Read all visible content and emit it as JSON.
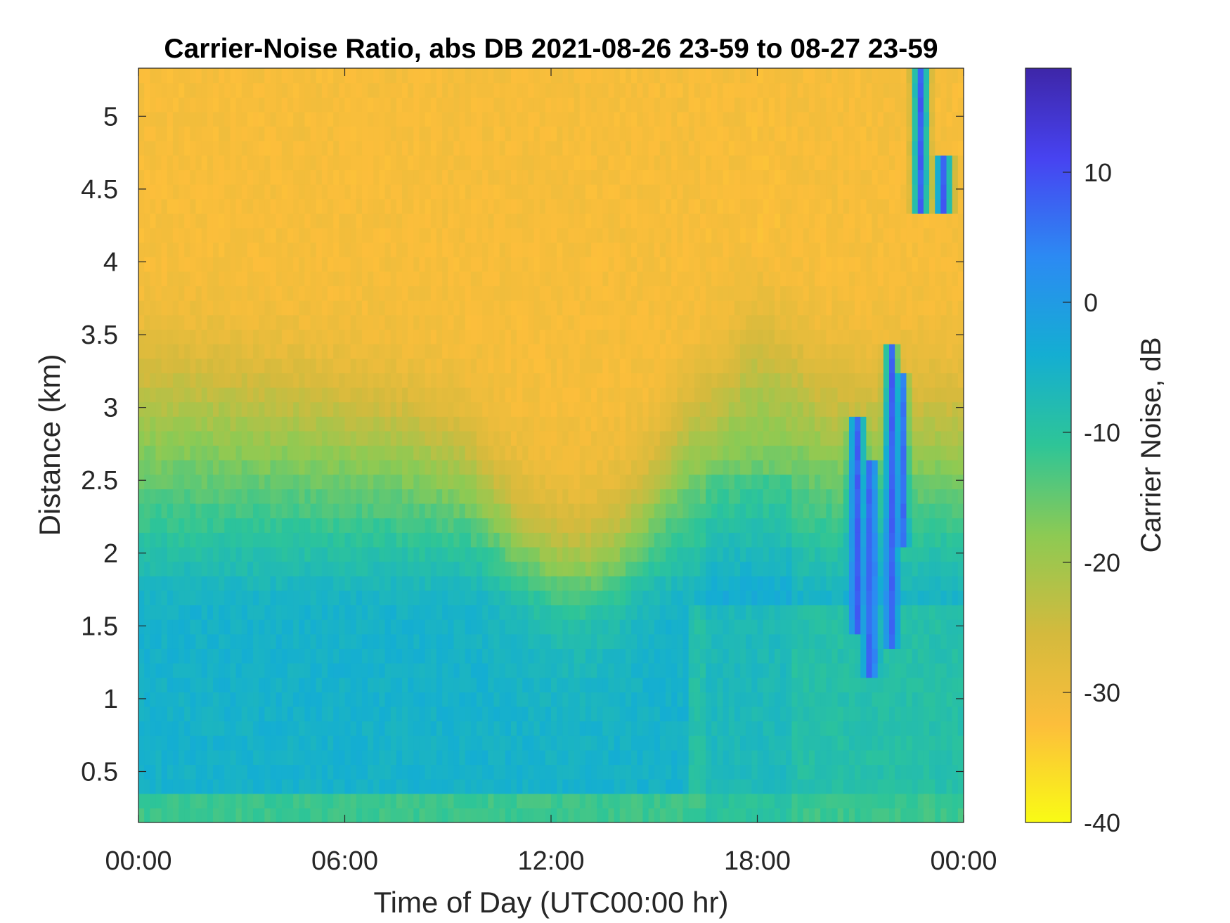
{
  "chart_data": {
    "type": "heatmap",
    "title": "Carrier-Noise Ratio, abs DB 2021-08-26 23-59 to 08-27 23-59",
    "xlabel": "Time of Day (UTC00:00 hr)",
    "ylabel": "Distance (km)",
    "x_range_hours": [
      0,
      24
    ],
    "x_ticks": [
      {
        "value": 0,
        "label": "00:00"
      },
      {
        "value": 6,
        "label": "06:00"
      },
      {
        "value": 12,
        "label": "12:00"
      },
      {
        "value": 18,
        "label": "18:00"
      },
      {
        "value": 24,
        "label": "00:00"
      }
    ],
    "ylim": [
      0.15,
      5.33
    ],
    "y_ticks": [
      {
        "value": 0.5,
        "label": "0.5"
      },
      {
        "value": 1,
        "label": "1"
      },
      {
        "value": 1.5,
        "label": "1.5"
      },
      {
        "value": 2,
        "label": "2"
      },
      {
        "value": 2.5,
        "label": "2.5"
      },
      {
        "value": 3,
        "label": "3"
      },
      {
        "value": 3.5,
        "label": "3.5"
      },
      {
        "value": 4,
        "label": "4"
      },
      {
        "value": 4.5,
        "label": "4.5"
      },
      {
        "value": 5,
        "label": "5"
      }
    ],
    "colorbar": {
      "label": "Carrier Noise, dB",
      "range": [
        -40,
        18
      ],
      "reversed": true,
      "colormap": "parula",
      "ticks": [
        {
          "value": 10,
          "label": "10"
        },
        {
          "value": 0,
          "label": "0"
        },
        {
          "value": -10,
          "label": "-10"
        },
        {
          "value": -20,
          "label": "-20"
        },
        {
          "value": -30,
          "label": "-30"
        },
        {
          "value": -40,
          "label": "-40"
        }
      ]
    },
    "regions": [
      {
        "description": "upper layer",
        "hours": [
          0,
          24
        ],
        "distance_km": [
          3.5,
          5.33
        ],
        "cnr_db": -31
      },
      {
        "description": "near-ground minimum near 12:00",
        "hours": [
          10.5,
          14.5
        ],
        "distance_km": [
          1.9,
          2.6
        ],
        "cnr_db": -29
      },
      {
        "description": "boundary layer core",
        "hours": [
          0,
          16
        ],
        "distance_km": [
          0.6,
          1.7
        ],
        "cnr_db": -5
      },
      {
        "description": "cloud returns",
        "hours": [
          19,
          23
        ],
        "distance_km": [
          1.2,
          5.33
        ],
        "cnr_db": 8
      },
      {
        "description": "cloud top patch",
        "hours": [
          22.4,
          23.7
        ],
        "distance_km": [
          4.3,
          4.7
        ],
        "cnr_db": 6
      }
    ]
  }
}
